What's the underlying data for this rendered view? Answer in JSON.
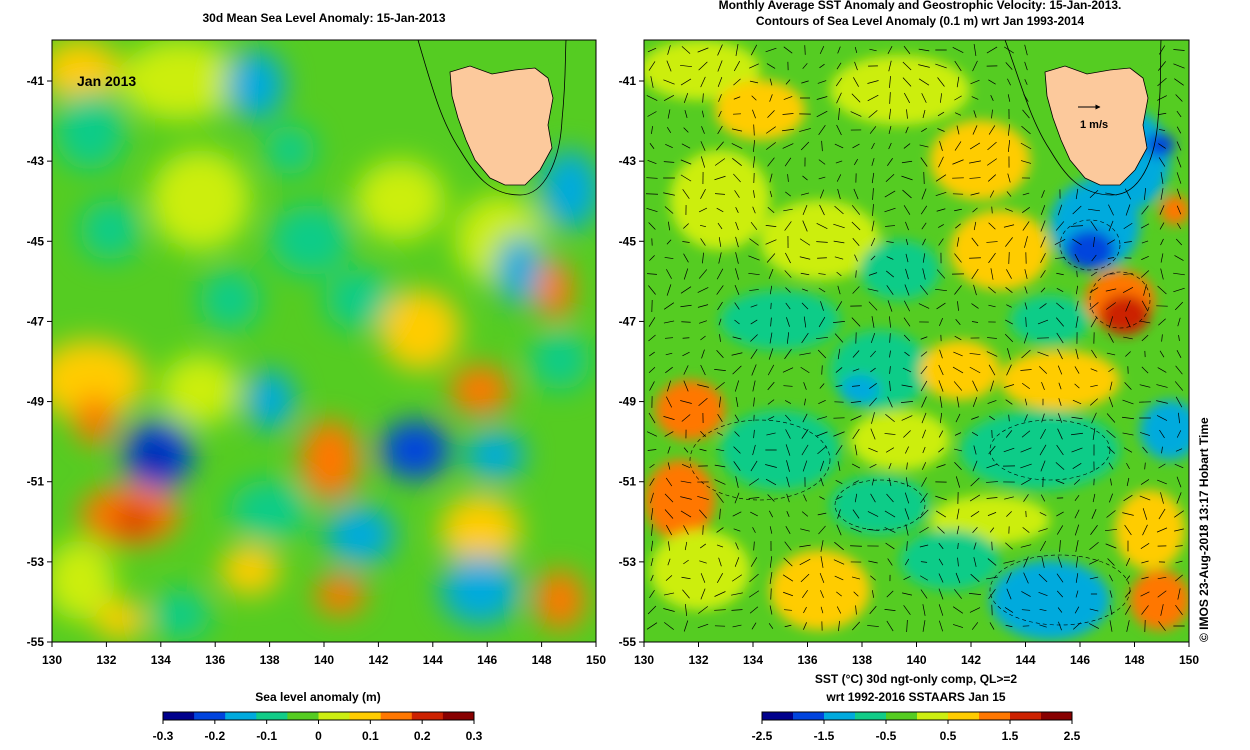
{
  "left_panel": {
    "title": "30d Mean Sea Level Anomaly: 15-Jan-2013",
    "inset_label": "Jan 2013",
    "xticks": [
      "130",
      "132",
      "134",
      "136",
      "138",
      "140",
      "142",
      "144",
      "146",
      "148",
      "150"
    ],
    "yticks": [
      "-41",
      "-43",
      "-45",
      "-47",
      "-49",
      "-51",
      "-53",
      "-55"
    ],
    "colorbar": {
      "label": "Sea level anomaly (m)",
      "ticks": [
        "-0.3",
        "-0.2",
        "-0.1",
        "0",
        "0.1",
        "0.2",
        "0.3"
      ]
    }
  },
  "right_panel": {
    "title_line1": "Monthly Average SST Anomaly  and Geostrophic Velocity: 15-Jan-2013.",
    "title_line2": "Contours of Sea Level Anomaly (0.1 m) wrt Jan 1993-2014",
    "vector_scale_label": "1 m/s",
    "xticks": [
      "130",
      "132",
      "134",
      "136",
      "138",
      "140",
      "142",
      "144",
      "146",
      "148",
      "150"
    ],
    "yticks": [
      "-41",
      "-43",
      "-45",
      "-47",
      "-49",
      "-51",
      "-53",
      "-55"
    ],
    "colorbar": {
      "label_line1": "SST (°C) 30d ngt-only comp, QL>=2",
      "label_line2": "wrt 1992-2016 SSTAARS Jan 15",
      "ticks": [
        "-2.5",
        "-1.5",
        "-0.5",
        "0.5",
        "1.5",
        "2.5"
      ]
    },
    "credit": "© IMOS 23-Aug-2018 13:17 Hobart Time"
  },
  "colors": {
    "land": "#fcc99c",
    "colormap": [
      "#00008c",
      "#0044dd",
      "#00aadd",
      "#11cc88",
      "#55cc22",
      "#ccee11",
      "#ffcc00",
      "#ff7700",
      "#cc2200",
      "#880000"
    ]
  }
}
